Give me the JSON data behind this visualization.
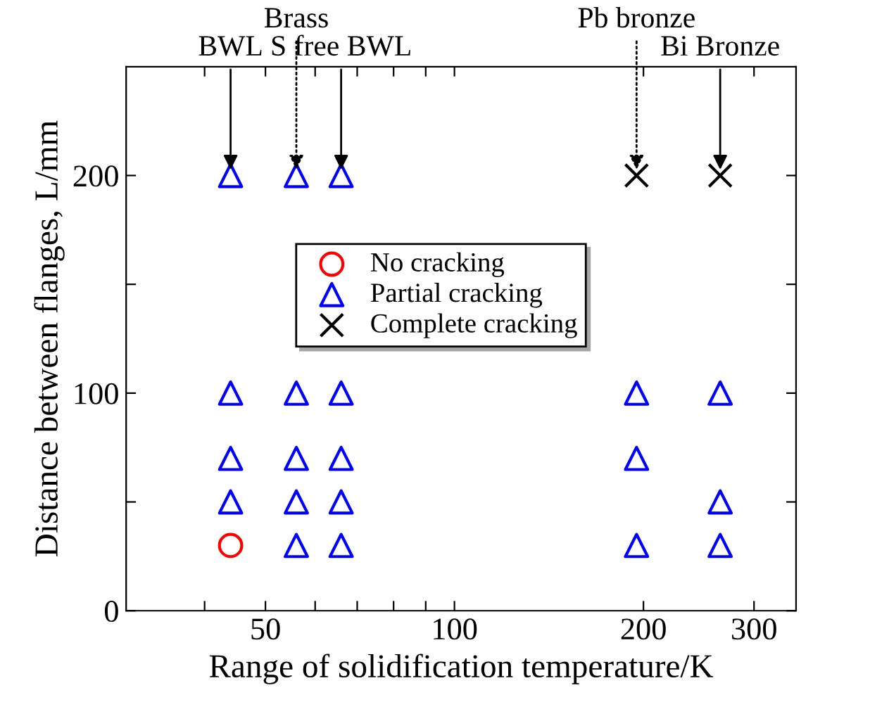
{
  "chart_data": {
    "type": "scatter",
    "xlabel": "Range of solidification temperature/K",
    "ylabel": "Distance between flanges, L/mm",
    "log": "x",
    "xlim": [
      30,
      350
    ],
    "ylim": [
      0,
      250
    ],
    "xticks": [
      {
        "value": 40,
        "label": null
      },
      50,
      {
        "value": 60,
        "label": null
      },
      {
        "value": 70,
        "label": null
      },
      {
        "value": 80,
        "label": null
      },
      {
        "value": 90,
        "label": null
      },
      100,
      200,
      300
    ],
    "yticks": [
      0,
      {
        "value": 50,
        "label": null
      },
      100,
      {
        "value": 150,
        "label": null
      },
      200
    ],
    "grid": false,
    "legend": "center",
    "series": [
      {
        "name": "No cracking",
        "color": "#ff0000",
        "marker": "circle",
        "x": [
          44
        ],
        "values": [
          30
        ]
      },
      {
        "name": "Partial cracking",
        "color": "#0000ff",
        "marker": "triangle",
        "x": [
          44,
          44,
          44,
          44,
          56,
          56,
          56,
          56,
          56,
          66,
          66,
          66,
          66,
          66,
          195,
          195,
          195,
          265,
          265,
          265
        ],
        "values": [
          200,
          100,
          70,
          50,
          200,
          100,
          70,
          50,
          30,
          200,
          100,
          70,
          50,
          30,
          100,
          70,
          30,
          100,
          50,
          30
        ]
      },
      {
        "name": "Complete cracking",
        "color": "#000000",
        "marker": "cross",
        "x": [
          195,
          265
        ],
        "values": [
          200,
          200
        ]
      }
    ],
    "annotations": [
      {
        "text": "BWL",
        "x": 44,
        "y": 200
      },
      {
        "text": "Brass",
        "x": 56,
        "y": 200
      },
      {
        "text": "S free BWL",
        "x": 66,
        "y": 200
      },
      {
        "text": "Pb bronze",
        "x": 195,
        "y": 200
      },
      {
        "text": "Bi Bronze",
        "x": 265,
        "y": 200
      }
    ]
  }
}
